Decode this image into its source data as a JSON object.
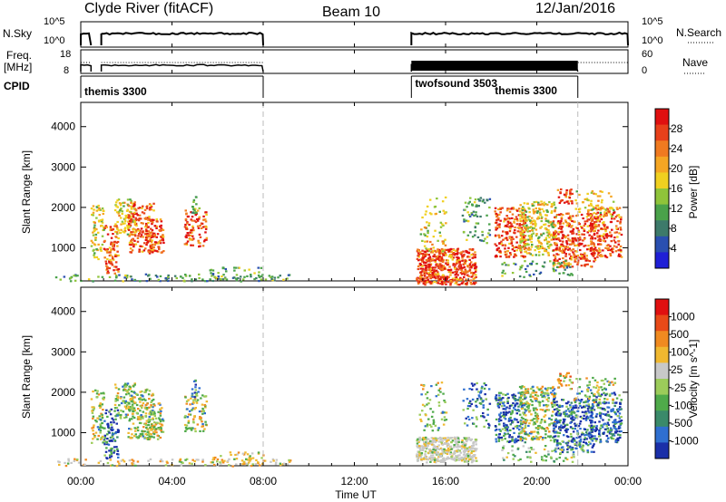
{
  "header": {
    "title": "Clyde River (fitACF)",
    "beam": "Beam 10",
    "date": "12/Jan/2016"
  },
  "top_panels": {
    "nsky_label": "N.Sky",
    "nsearch_label": "N.Search",
    "nsky_ticks": [
      "10^5",
      "10^0"
    ],
    "nsearch_ticks": [
      "10^5",
      "10^0"
    ],
    "freq_label_1": "Freq.",
    "freq_label_2": "[MHz]",
    "freq_ticks": [
      "18",
      "8"
    ],
    "nave_label": "Nave",
    "nave_ticks": [
      "60",
      "0"
    ],
    "cpid_label": "CPID",
    "cpid_segments": [
      {
        "label": "themis 3300",
        "start_h": 0.0,
        "end_h": 8.0
      },
      {
        "label": "twofsound 3503",
        "start_h": 14.5,
        "end_h": 21.8
      },
      {
        "label": "themis 3300",
        "start_h": 18.0,
        "end_h": 21.8
      }
    ]
  },
  "chart_data": [
    {
      "type": "heatmap",
      "name": "power",
      "ylabel": "Slant Range [km]",
      "ylim": [
        180,
        4600
      ],
      "yticks": [
        "4000",
        "3000",
        "2000",
        "1000"
      ],
      "colorbar_label": "Power [dB]",
      "colorbar_ticks": [
        "28",
        "24",
        "20",
        "16",
        "12",
        "8",
        "4"
      ],
      "colorscale": [
        "#1f1fd6",
        "#2a4fb0",
        "#3d7a6a",
        "#4aa24a",
        "#8fc43a",
        "#f0d020",
        "#f5a623",
        "#f07a20",
        "#e8401a",
        "#e01010"
      ]
    },
    {
      "type": "heatmap",
      "name": "velocity",
      "ylabel": "Slant Range [km]",
      "ylim": [
        180,
        4600
      ],
      "yticks": [
        "4000",
        "3000",
        "2000",
        "1000"
      ],
      "colorbar_label": "Velocity [m s^-1]",
      "colorbar_ticks": [
        "1000",
        "500",
        "100",
        "25",
        "-25",
        "-100",
        "-500",
        "-1000"
      ],
      "colorscale": [
        "#1a2fa8",
        "#2f6fd0",
        "#3a8a6a",
        "#4faa4a",
        "#9ccc5a",
        "#c8c8c8",
        "#f0b830",
        "#f08a20",
        "#e84a18",
        "#e01010"
      ]
    }
  ],
  "x_axis": {
    "label": "Time UT",
    "ticks": [
      "00:00",
      "04:00",
      "08:00",
      "12:00",
      "16:00",
      "20:00",
      "00:00"
    ],
    "xlim": [
      0,
      24
    ]
  }
}
